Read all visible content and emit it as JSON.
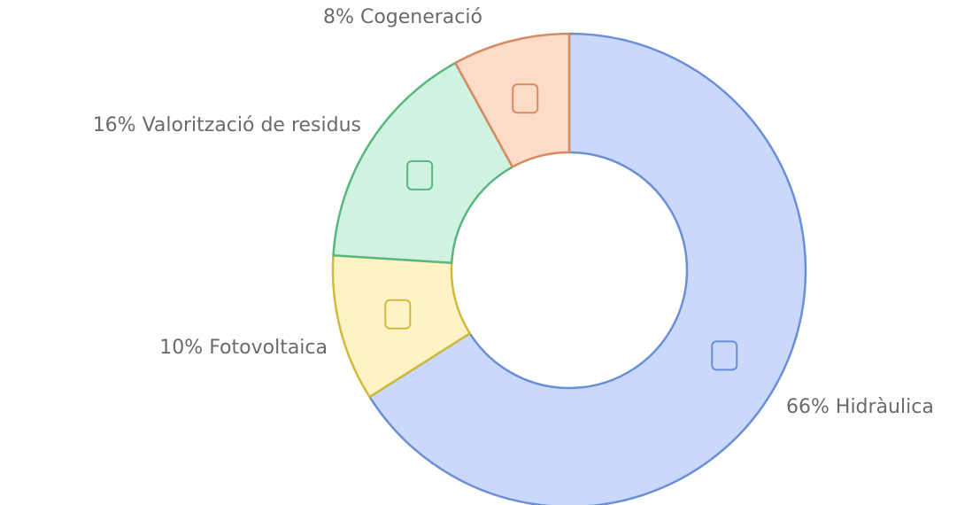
{
  "chart_data": {
    "type": "donut",
    "categories": [
      "Hidràulica",
      "Fotovoltaica",
      "Valorització de residus",
      "Cogeneració"
    ],
    "values": [
      66,
      10,
      16,
      8
    ],
    "value_labels": [
      "66%",
      "10%",
      "16%",
      "8%"
    ],
    "colors": [
      "#c9d8fb",
      "#fdf3c4",
      "#d0f2e0",
      "#fcdcc8"
    ],
    "edge_colors": [
      "#6b8fd6",
      "#d2b93c",
      "#5bb57f",
      "#d58a5f"
    ]
  }
}
